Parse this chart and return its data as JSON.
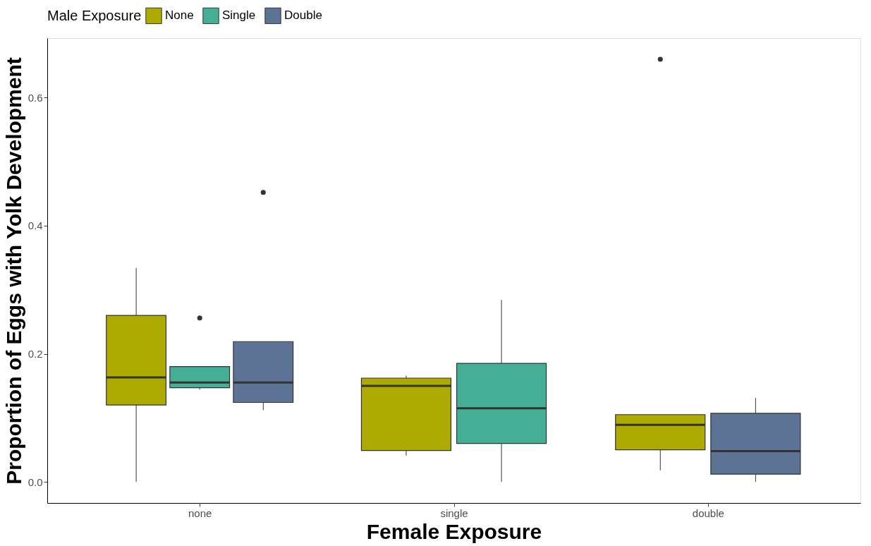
{
  "chart_data": {
    "type": "box",
    "xlabel": "Female Exposure",
    "ylabel": "Proportion of Eggs with Yolk Development",
    "legend_title": "Male Exposure",
    "legend": "top",
    "grid": false,
    "categories": [
      "none",
      "single",
      "double"
    ],
    "ylim": [
      -0.033,
      0.693
    ],
    "yticks": [
      {
        "value": 0,
        "label": "0.0"
      },
      {
        "value": 0.2,
        "label": "0.2"
      },
      {
        "value": 0.4,
        "label": "0.4"
      },
      {
        "value": 0.6,
        "label": "0.6"
      }
    ],
    "series": [
      {
        "name": "None",
        "color": "#adab00",
        "boxes": [
          {
            "low": 0.0,
            "q1": 0.12,
            "median": 0.163,
            "q3": 0.26,
            "high": 0.334
          },
          {
            "low": 0.041,
            "q1": 0.049,
            "median": 0.15,
            "q3": 0.162,
            "high": 0.166
          },
          {
            "low": 0.018,
            "q1": 0.05,
            "median": 0.089,
            "q3": 0.105,
            "high": 0.105,
            "outliers": [
              0.66
            ]
          }
        ]
      },
      {
        "name": "Single",
        "color": "#45af96",
        "boxes": [
          {
            "low": 0.144,
            "q1": 0.147,
            "median": 0.155,
            "q3": 0.18,
            "high": 0.18,
            "outliers": [
              0.256
            ]
          },
          {
            "low": 0.0,
            "q1": 0.06,
            "median": 0.115,
            "q3": 0.185,
            "high": 0.284
          },
          null
        ]
      },
      {
        "name": "Double",
        "color": "#5c7396",
        "boxes": [
          {
            "low": 0.112,
            "q1": 0.124,
            "median": 0.155,
            "q3": 0.219,
            "high": 0.219,
            "outliers": [
              0.452
            ]
          },
          null,
          {
            "low": 0.0,
            "q1": 0.012,
            "median": 0.048,
            "q3": 0.107,
            "high": 0.131
          }
        ]
      }
    ]
  }
}
